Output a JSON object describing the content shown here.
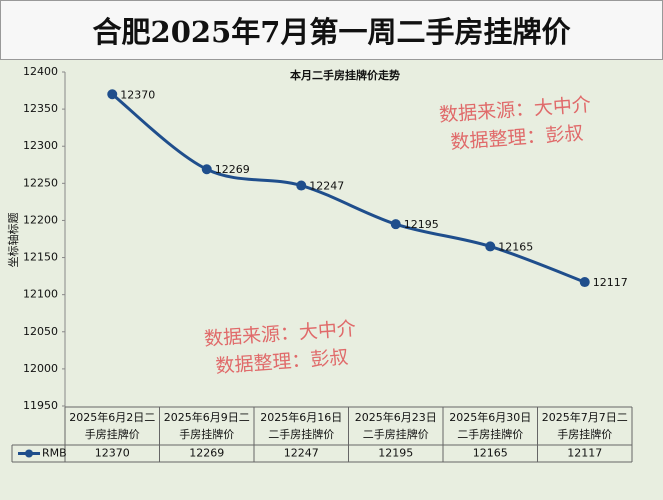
{
  "chart_data": {
    "type": "line",
    "banner": "合肥2025年7月第一周二手房挂牌价",
    "title": "本月二手房挂牌价走势",
    "y_label": "坐标轴标题",
    "categories": [
      "2025年6月2日二手房挂牌价",
      "2025年6月9日二手房挂牌价",
      "2025年6月16日二手房挂牌价",
      "2025年6月23日二手房挂牌价",
      "2025年6月30日二手房挂牌价",
      "2025年7月7日二手房挂牌价"
    ],
    "series": [
      {
        "name": "RMB",
        "color": "#1f4e8c",
        "values": [
          12370,
          12269,
          12247,
          12195,
          12165,
          12117
        ]
      }
    ],
    "ylim": [
      11950,
      12400
    ],
    "yticks": [
      11950,
      12000,
      12050,
      12100,
      12150,
      12200,
      12250,
      12300,
      12350,
      12400
    ],
    "data_table": true,
    "watermarks": [
      {
        "lines": [
          "数据来源：大中介",
          "数据整理：彭叔"
        ]
      },
      {
        "lines": [
          "数据来源：大中介",
          "数据整理：彭叔"
        ]
      }
    ]
  }
}
